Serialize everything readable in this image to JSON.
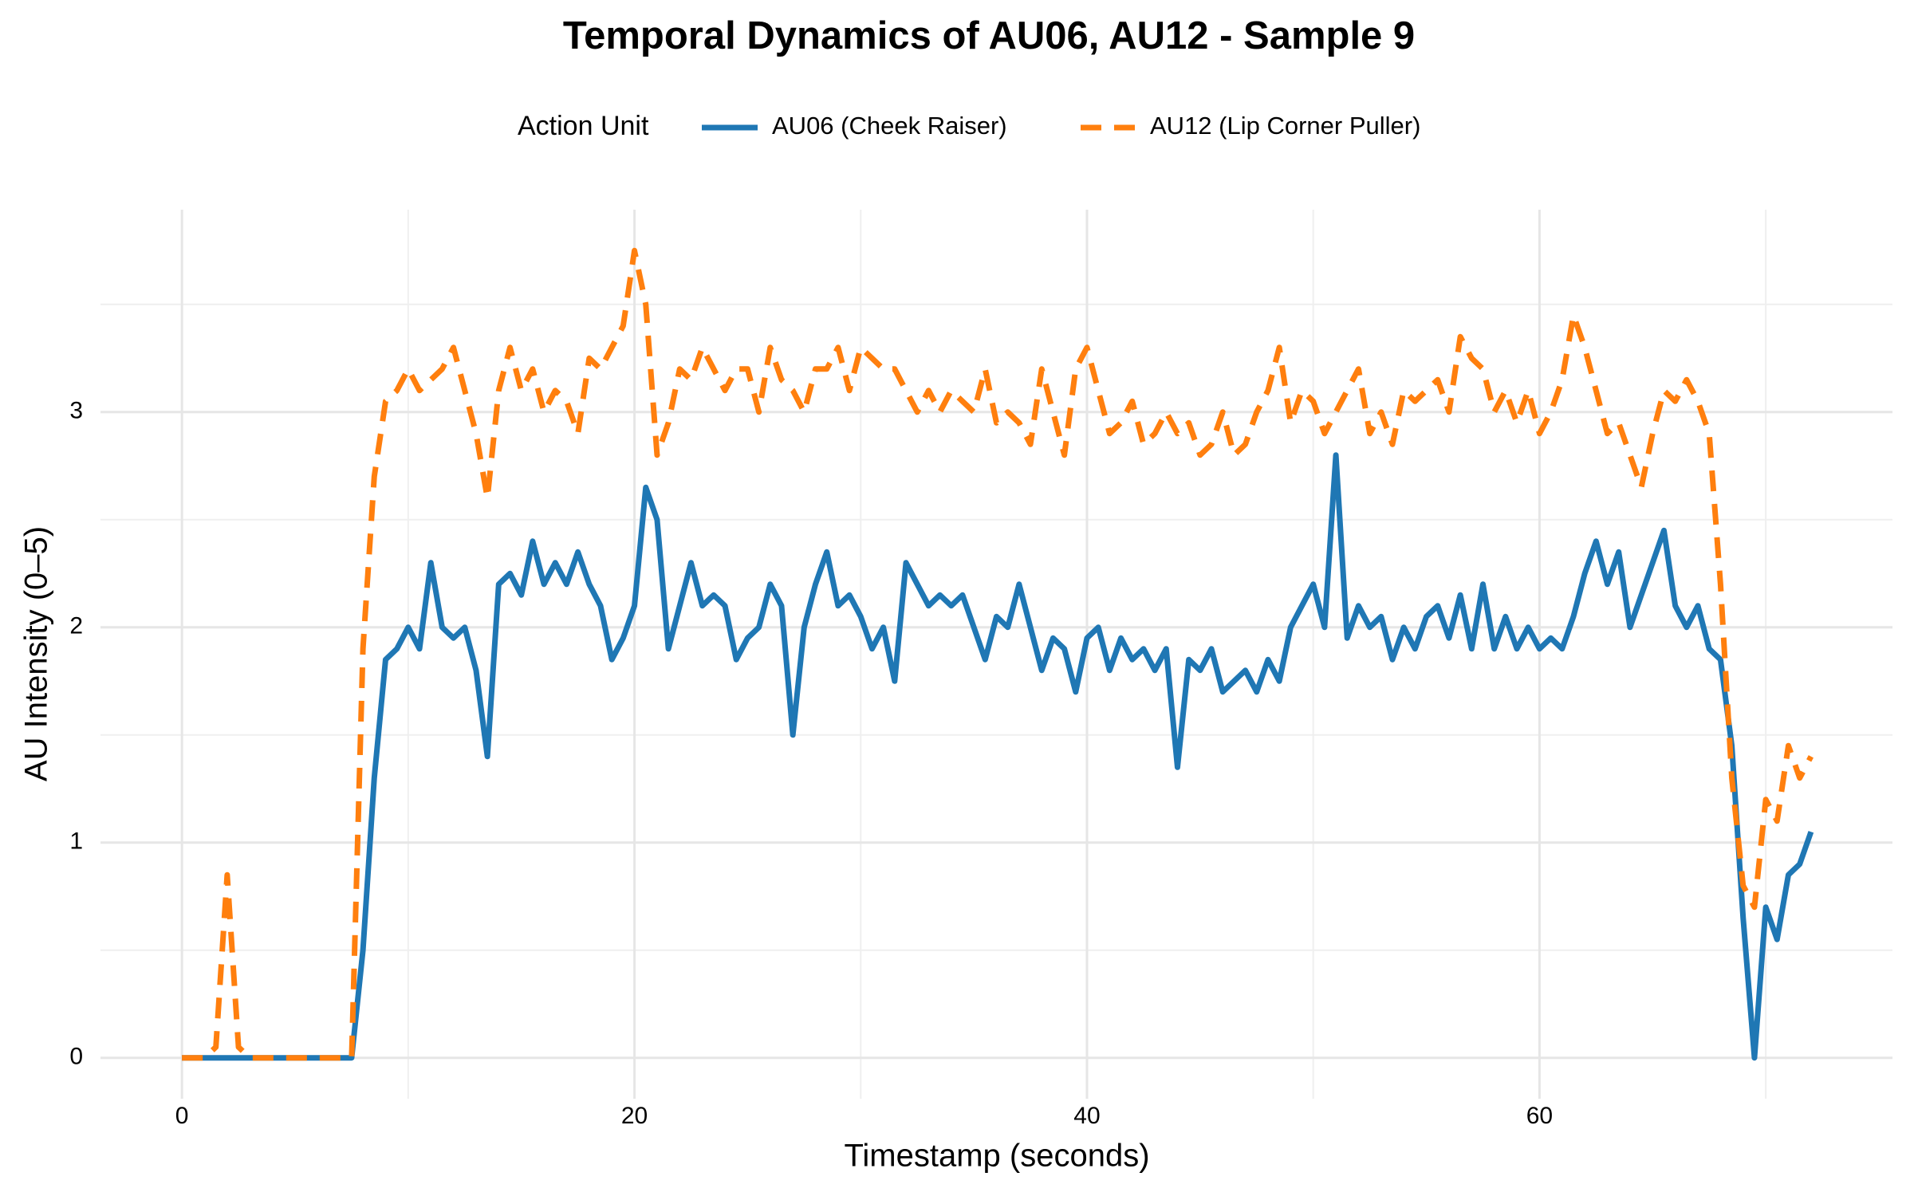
{
  "chart_data": {
    "type": "line",
    "title": "Temporal Dynamics of AU06, AU12 - Sample 9",
    "x_label": "Timestamp (seconds)",
    "y_label": "AU Intensity (0–5)",
    "legend_title": "Action Unit",
    "legend_position": "top",
    "grid": true,
    "xlim": [
      -3.6,
      75.6
    ],
    "ylim": [
      -0.19,
      3.94
    ],
    "xticks": [
      0,
      20,
      40,
      60
    ],
    "yticks": [
      0,
      1,
      2,
      3
    ],
    "x": [
      0,
      0.5,
      1,
      1.5,
      2,
      2.5,
      3,
      3.5,
      4,
      4.5,
      5,
      5.5,
      6,
      6.5,
      7,
      7.5,
      8,
      8.5,
      9,
      9.5,
      10,
      10.5,
      11,
      11.5,
      12,
      12.5,
      13,
      13.5,
      14,
      14.5,
      15,
      15.5,
      16,
      16.5,
      17,
      17.5,
      18,
      18.5,
      19,
      19.5,
      20,
      20.5,
      21,
      21.5,
      22,
      22.5,
      23,
      23.5,
      24,
      24.5,
      25,
      25.5,
      26,
      26.5,
      27,
      27.5,
      28,
      28.5,
      29,
      29.5,
      30,
      30.5,
      31,
      31.5,
      32,
      32.5,
      33,
      33.5,
      34,
      34.5,
      35,
      35.5,
      36,
      36.5,
      37,
      37.5,
      38,
      38.5,
      39,
      39.5,
      40,
      40.5,
      41,
      41.5,
      42,
      42.5,
      43,
      43.5,
      44,
      44.5,
      45,
      45.5,
      46,
      46.5,
      47,
      47.5,
      48,
      48.5,
      49,
      49.5,
      50,
      50.5,
      51,
      51.5,
      52,
      52.5,
      53,
      53.5,
      54,
      54.5,
      55,
      55.5,
      56,
      56.5,
      57,
      57.5,
      58,
      58.5,
      59,
      59.5,
      60,
      60.5,
      61,
      61.5,
      62,
      62.5,
      63,
      63.5,
      64,
      64.5,
      65,
      65.5,
      66,
      66.5,
      67,
      67.5,
      68,
      68.5,
      69,
      69.5,
      70,
      70.5,
      71,
      71.5,
      72
    ],
    "series": [
      {
        "name": "AU06 (Cheek Raiser)",
        "color": "#1f77b4",
        "dash": "solid",
        "values": [
          0,
          0,
          0,
          0,
          0,
          0,
          0,
          0,
          0,
          0,
          0,
          0,
          0,
          0,
          0,
          0,
          0.5,
          1.3,
          1.85,
          1.9,
          2.0,
          1.9,
          2.3,
          2.0,
          1.95,
          2.0,
          1.8,
          1.4,
          2.2,
          2.25,
          2.15,
          2.4,
          2.2,
          2.3,
          2.2,
          2.35,
          2.2,
          2.1,
          1.85,
          1.95,
          2.1,
          2.65,
          2.5,
          1.9,
          2.1,
          2.3,
          2.1,
          2.15,
          2.1,
          1.85,
          1.95,
          2.0,
          2.2,
          2.1,
          1.5,
          2.0,
          2.2,
          2.35,
          2.1,
          2.15,
          2.05,
          1.9,
          2.0,
          1.75,
          2.3,
          2.2,
          2.1,
          2.15,
          2.1,
          2.15,
          2.0,
          1.85,
          2.05,
          2.0,
          2.2,
          2.0,
          1.8,
          1.95,
          1.9,
          1.7,
          1.95,
          2.0,
          1.8,
          1.95,
          1.85,
          1.9,
          1.8,
          1.9,
          1.35,
          1.85,
          1.8,
          1.9,
          1.7,
          1.75,
          1.8,
          1.7,
          1.85,
          1.75,
          2.0,
          2.1,
          2.2,
          2.0,
          2.8,
          1.95,
          2.1,
          2.0,
          2.05,
          1.85,
          2.0,
          1.9,
          2.05,
          2.1,
          1.95,
          2.15,
          1.9,
          2.2,
          1.9,
          2.05,
          1.9,
          2.0,
          1.9,
          1.95,
          1.9,
          2.05,
          2.25,
          2.4,
          2.2,
          2.35,
          2.0,
          2.15,
          2.3,
          2.45,
          2.1,
          2.0,
          2.1,
          1.9,
          1.85,
          1.45,
          0.65,
          0.0,
          0.7,
          0.55,
          0.85,
          0.9,
          1.05
        ]
      },
      {
        "name": "AU12 (Lip Corner Puller)",
        "color": "#ff7f0e",
        "dash": "dashed",
        "values": [
          0,
          0,
          0,
          0.05,
          0.85,
          0.05,
          0,
          0,
          0,
          0,
          0,
          0,
          0,
          0,
          0,
          0,
          1.9,
          2.7,
          3.05,
          3.1,
          3.2,
          3.1,
          3.15,
          3.2,
          3.3,
          3.1,
          2.9,
          2.6,
          3.1,
          3.3,
          3.1,
          3.2,
          3.0,
          3.1,
          3.05,
          2.9,
          3.25,
          3.2,
          3.3,
          3.4,
          3.75,
          3.5,
          2.8,
          2.95,
          3.2,
          3.15,
          3.3,
          3.2,
          3.1,
          3.2,
          3.2,
          3.0,
          3.3,
          3.15,
          3.1,
          3.0,
          3.2,
          3.2,
          3.3,
          3.1,
          3.3,
          3.25,
          3.2,
          3.2,
          3.1,
          3.0,
          3.1,
          3.0,
          3.1,
          3.05,
          3.0,
          3.2,
          2.95,
          3.0,
          2.95,
          2.85,
          3.2,
          3.0,
          2.8,
          3.2,
          3.3,
          3.1,
          2.9,
          2.95,
          3.05,
          2.85,
          2.9,
          3.0,
          2.9,
          2.95,
          2.8,
          2.85,
          3.0,
          2.8,
          2.85,
          3.0,
          3.1,
          3.3,
          2.95,
          3.1,
          3.05,
          2.9,
          3.0,
          3.1,
          3.2,
          2.9,
          3.0,
          2.85,
          3.1,
          3.05,
          3.1,
          3.15,
          3.0,
          3.35,
          3.25,
          3.2,
          3.0,
          3.1,
          2.95,
          3.1,
          2.9,
          3.0,
          3.15,
          3.45,
          3.3,
          3.1,
          2.9,
          2.95,
          2.8,
          2.65,
          2.9,
          3.1,
          3.05,
          3.15,
          3.05,
          2.9,
          2.2,
          1.3,
          0.8,
          0.7,
          1.2,
          1.1,
          1.45,
          1.3,
          1.4
        ]
      }
    ]
  }
}
